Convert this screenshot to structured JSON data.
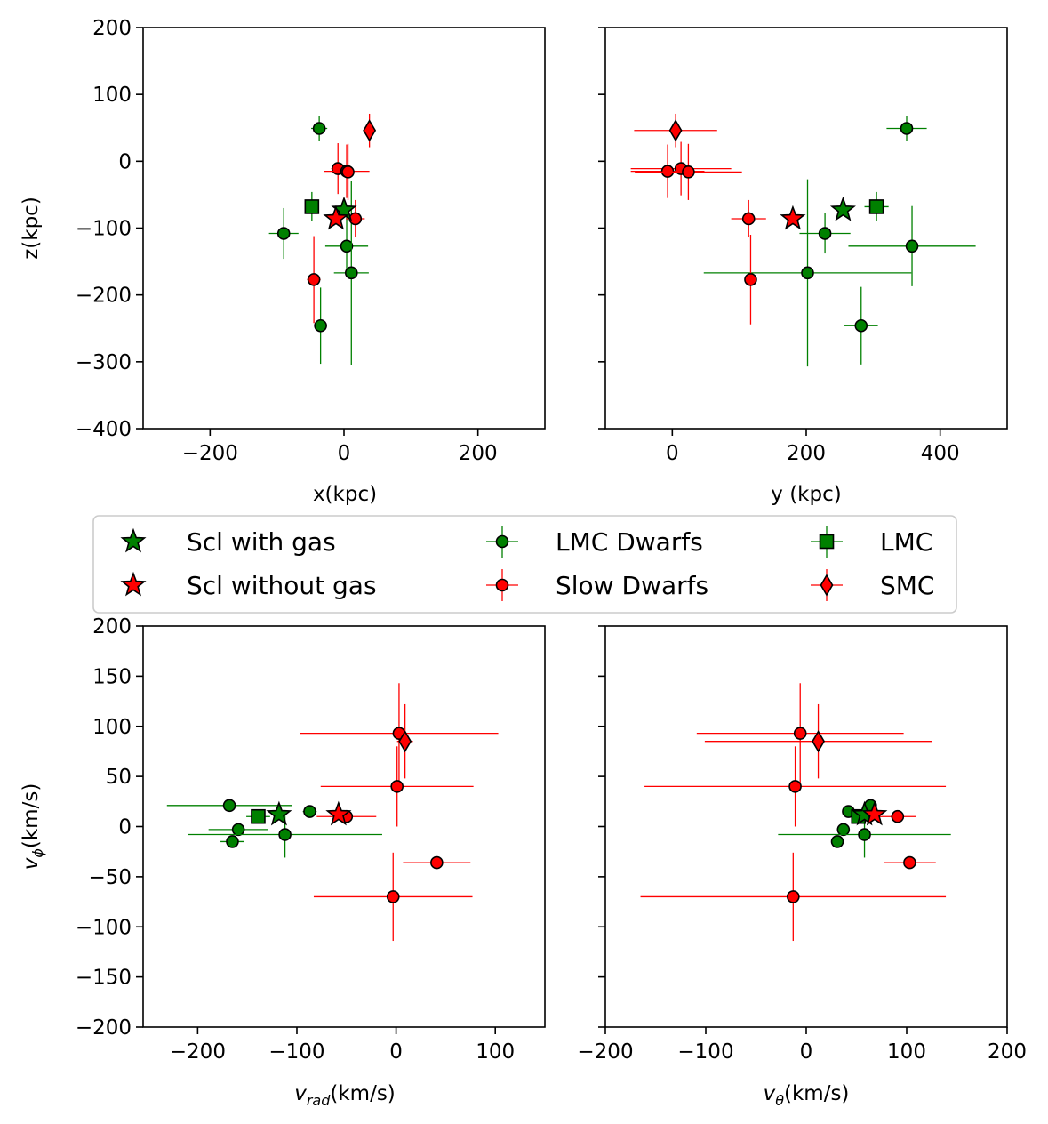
{
  "colors": {
    "green": "#008000",
    "red": "#ff0000",
    "edge": "#000000",
    "legend_border": "#cccccc"
  },
  "legend": {
    "items": [
      {
        "label": "Scl with gas",
        "marker": "star",
        "fill": "#008000",
        "errorbar": false
      },
      {
        "label": "Scl without gas",
        "marker": "star",
        "fill": "#ff0000",
        "errorbar": false
      },
      {
        "label": "LMC Dwarfs",
        "marker": "circle",
        "fill": "#008000",
        "errorbar": true
      },
      {
        "label": "Slow Dwarfs",
        "marker": "circle",
        "fill": "#ff0000",
        "errorbar": true
      },
      {
        "label": "LMC",
        "marker": "square",
        "fill": "#008000",
        "errorbar": true
      },
      {
        "label": "SMC",
        "marker": "diamond",
        "fill": "#ff0000",
        "errorbar": true
      }
    ]
  },
  "chart_data": [
    {
      "type": "scatter",
      "id": "xz",
      "xlabel": "x(kpc)",
      "ylabel": "z(kpc)",
      "xlim": [
        -300,
        300
      ],
      "ylim": [
        -400,
        200
      ],
      "xticks": [
        -200,
        0,
        200
      ],
      "xtick_labels": [
        "−200",
        "0",
        "200"
      ],
      "yticks": [
        -400,
        -300,
        -200,
        -100,
        0,
        100,
        200
      ],
      "ytick_labels": [
        "−400",
        "−300",
        "−200",
        "−100",
        "0",
        "100",
        "200"
      ],
      "series": [
        {
          "name": "LMC Dwarfs",
          "marker": "circle",
          "color": "#008000",
          "points": [
            {
              "x": -37,
              "y": 49,
              "xerr": 12,
              "yerr": 18
            },
            {
              "x": -90,
              "y": -108,
              "xerr": 22,
              "yerr": 38
            },
            {
              "x": 4,
              "y": -127,
              "xerr": 32,
              "yerr": 45
            },
            {
              "x": 11,
              "y": -167,
              "xerr": 26,
              "yerr": 138
            },
            {
              "x": -35,
              "y": -246,
              "xerr": 6,
              "yerr": 57
            }
          ]
        },
        {
          "name": "Slow Dwarfs",
          "marker": "circle",
          "color": "#ff0000",
          "points": [
            {
              "x": -9,
              "y": -11,
              "xerr": 10,
              "yerr": 38
            },
            {
              "x": 4,
              "y": -15,
              "xerr": 34,
              "yerr": 40
            },
            {
              "x": 6,
              "y": -16,
              "xerr": 8,
              "yerr": 42
            },
            {
              "x": 17,
              "y": -86,
              "xerr": 14,
              "yerr": 28
            },
            {
              "x": -45,
              "y": -177,
              "xerr": 10,
              "yerr": 65
            }
          ]
        },
        {
          "name": "LMC",
          "marker": "square",
          "color": "#008000",
          "points": [
            {
              "x": -48,
              "y": -68,
              "xerr": 8,
              "yerr": 22
            }
          ]
        },
        {
          "name": "SMC",
          "marker": "diamond",
          "color": "#ff0000",
          "points": [
            {
              "x": 38,
              "y": 46,
              "xerr": 8,
              "yerr": 25
            }
          ]
        },
        {
          "name": "Scl with gas",
          "marker": "star",
          "color": "#008000",
          "points": [
            {
              "x": 0,
              "y": -73
            }
          ]
        },
        {
          "name": "Scl without gas",
          "marker": "star",
          "color": "#ff0000",
          "points": [
            {
              "x": -12,
              "y": -86
            }
          ]
        }
      ]
    },
    {
      "type": "scatter",
      "id": "yz",
      "xlabel": "y (kpc)",
      "ylabel": "",
      "xlim": [
        -100,
        500
      ],
      "ylim": [
        -400,
        200
      ],
      "xticks": [
        0,
        200,
        400
      ],
      "xtick_labels": [
        "0",
        "200",
        "400"
      ],
      "yticks": [
        -400,
        -300,
        -200,
        -100,
        0,
        100,
        200
      ],
      "ytick_labels": [],
      "series": [
        {
          "name": "LMC Dwarfs",
          "marker": "circle",
          "color": "#008000",
          "points": [
            {
              "x": 350,
              "y": 49,
              "xerr": 30,
              "yerr": 18
            },
            {
              "x": 228,
              "y": -108,
              "xerr": 38,
              "yerr": 30
            },
            {
              "x": 358,
              "y": -127,
              "xerr": 95,
              "yerr": 60
            },
            {
              "x": 202,
              "y": -167,
              "xerr": 155,
              "yerr": 140
            },
            {
              "x": 282,
              "y": -246,
              "xerr": 25,
              "yerr": 58
            }
          ]
        },
        {
          "name": "Slow Dwarfs",
          "marker": "circle",
          "color": "#ff0000",
          "points": [
            {
              "x": 13,
              "y": -11,
              "xerr": 75,
              "yerr": 40
            },
            {
              "x": -7,
              "y": -15,
              "xerr": 55,
              "yerr": 40
            },
            {
              "x": 24,
              "y": -16,
              "xerr": 80,
              "yerr": 42
            },
            {
              "x": 114,
              "y": -86,
              "xerr": 26,
              "yerr": 28
            },
            {
              "x": 117,
              "y": -177,
              "xerr": 6,
              "yerr": 67
            }
          ]
        },
        {
          "name": "LMC",
          "marker": "square",
          "color": "#008000",
          "points": [
            {
              "x": 305,
              "y": -68,
              "xerr": 18,
              "yerr": 22
            }
          ]
        },
        {
          "name": "SMC",
          "marker": "diamond",
          "color": "#ff0000",
          "points": [
            {
              "x": 5,
              "y": 46,
              "xerr": 62,
              "yerr": 25
            }
          ]
        },
        {
          "name": "Scl with gas",
          "marker": "star",
          "color": "#008000",
          "points": [
            {
              "x": 255,
              "y": -73
            }
          ]
        },
        {
          "name": "Scl without gas",
          "marker": "star",
          "color": "#ff0000",
          "points": [
            {
              "x": 180,
              "y": -86
            }
          ]
        }
      ]
    },
    {
      "type": "scatter",
      "id": "vrad-vphi",
      "xlabel_base": "v",
      "xlabel_sub": "rad",
      "xlabel_unit": "(km/s)",
      "ylabel_base": "v",
      "ylabel_sub": "ϕ",
      "ylabel_unit": "(km/s)",
      "xlim": [
        -255,
        150
      ],
      "ylim": [
        -200,
        200
      ],
      "xticks": [
        -200,
        -100,
        0,
        100
      ],
      "xtick_labels": [
        "−200",
        "−100",
        "0",
        "100"
      ],
      "yticks": [
        -200,
        -150,
        -100,
        -50,
        0,
        50,
        100,
        150,
        200
      ],
      "ytick_labels": [
        "−200",
        "−150",
        "−100",
        "−50",
        "0",
        "50",
        "100",
        "150",
        "200"
      ],
      "series": [
        {
          "name": "LMC Dwarfs",
          "marker": "circle",
          "color": "#008000",
          "points": [
            {
              "x": -168,
              "y": 21,
              "xerr": 63,
              "yerr": 0
            },
            {
              "x": -159,
              "y": -3,
              "xerr": 30,
              "yerr": 0
            },
            {
              "x": -165,
              "y": -15,
              "xerr": 12,
              "yerr": 0
            },
            {
              "x": -87,
              "y": 15,
              "xerr": 7,
              "yerr": 0
            },
            {
              "x": -112,
              "y": -8,
              "xerr": 98,
              "yerr": 23
            }
          ]
        },
        {
          "name": "Slow Dwarfs",
          "marker": "circle",
          "color": "#ff0000",
          "points": [
            {
              "x": 3,
              "y": 93,
              "xerr": 100,
              "yerr": 50
            },
            {
              "x": 1,
              "y": 40,
              "xerr": 77,
              "yerr": 40
            },
            {
              "x": -50,
              "y": 10,
              "xerr": 30,
              "yerr": 0
            },
            {
              "x": 41,
              "y": -36,
              "xerr": 34,
              "yerr": 0
            },
            {
              "x": -3,
              "y": -70,
              "xerr": 80,
              "yerr": 44
            }
          ]
        },
        {
          "name": "LMC",
          "marker": "square",
          "color": "#008000",
          "points": [
            {
              "x": -139,
              "y": 10,
              "xerr": 12,
              "yerr": 0
            }
          ]
        },
        {
          "name": "SMC",
          "marker": "diamond",
          "color": "#ff0000",
          "points": [
            {
              "x": 9,
              "y": 85,
              "xerr": 8,
              "yerr": 37
            }
          ]
        },
        {
          "name": "Scl with gas",
          "marker": "star",
          "color": "#008000",
          "points": [
            {
              "x": -118,
              "y": 12
            }
          ]
        },
        {
          "name": "Scl without gas",
          "marker": "star",
          "color": "#ff0000",
          "points": [
            {
              "x": -58,
              "y": 12
            }
          ]
        }
      ]
    },
    {
      "type": "scatter",
      "id": "vtheta-vphi",
      "xlabel_base": "v",
      "xlabel_sub": "θ",
      "xlabel_unit": "(km/s)",
      "ylabel_base": "",
      "ylabel_sub": "",
      "ylabel_unit": "",
      "xlim": [
        -200,
        200
      ],
      "ylim": [
        -200,
        200
      ],
      "xticks": [
        -200,
        -100,
        0,
        100,
        200
      ],
      "xtick_labels": [
        "−200",
        "−100",
        "0",
        "100",
        "200"
      ],
      "yticks": [
        -200,
        -150,
        -100,
        -50,
        0,
        50,
        100,
        150,
        200
      ],
      "ytick_labels": [],
      "series": [
        {
          "name": "LMC Dwarfs",
          "marker": "circle",
          "color": "#008000",
          "points": [
            {
              "x": 64,
              "y": 21,
              "xerr": 0,
              "yerr": 0
            },
            {
              "x": 37,
              "y": -3,
              "xerr": 0,
              "yerr": 0
            },
            {
              "x": 31,
              "y": -15,
              "xerr": 0,
              "yerr": 0
            },
            {
              "x": 42,
              "y": 15,
              "xerr": 0,
              "yerr": 0
            },
            {
              "x": 58,
              "y": -8,
              "xerr": 86,
              "yerr": 23
            }
          ]
        },
        {
          "name": "Slow Dwarfs",
          "marker": "circle",
          "color": "#ff0000",
          "points": [
            {
              "x": -6,
              "y": 93,
              "xerr": 103,
              "yerr": 50
            },
            {
              "x": -11,
              "y": 40,
              "xerr": 150,
              "yerr": 40
            },
            {
              "x": 91,
              "y": 10,
              "xerr": 18,
              "yerr": 0
            },
            {
              "x": 103,
              "y": -36,
              "xerr": 26,
              "yerr": 0
            },
            {
              "x": -13,
              "y": -70,
              "xerr": 152,
              "yerr": 44
            }
          ]
        },
        {
          "name": "LMC",
          "marker": "square",
          "color": "#008000",
          "points": [
            {
              "x": 52,
              "y": 10,
              "xerr": 5,
              "yerr": 0
            }
          ]
        },
        {
          "name": "SMC",
          "marker": "diamond",
          "color": "#ff0000",
          "points": [
            {
              "x": 12,
              "y": 85,
              "xerr": 113,
              "yerr": 37
            }
          ]
        },
        {
          "name": "Scl with gas",
          "marker": "star",
          "color": "#008000",
          "points": [
            {
              "x": 58,
              "y": 12
            }
          ]
        },
        {
          "name": "Scl without gas",
          "marker": "star",
          "color": "#ff0000",
          "points": [
            {
              "x": 68,
              "y": 12
            }
          ]
        }
      ]
    }
  ]
}
